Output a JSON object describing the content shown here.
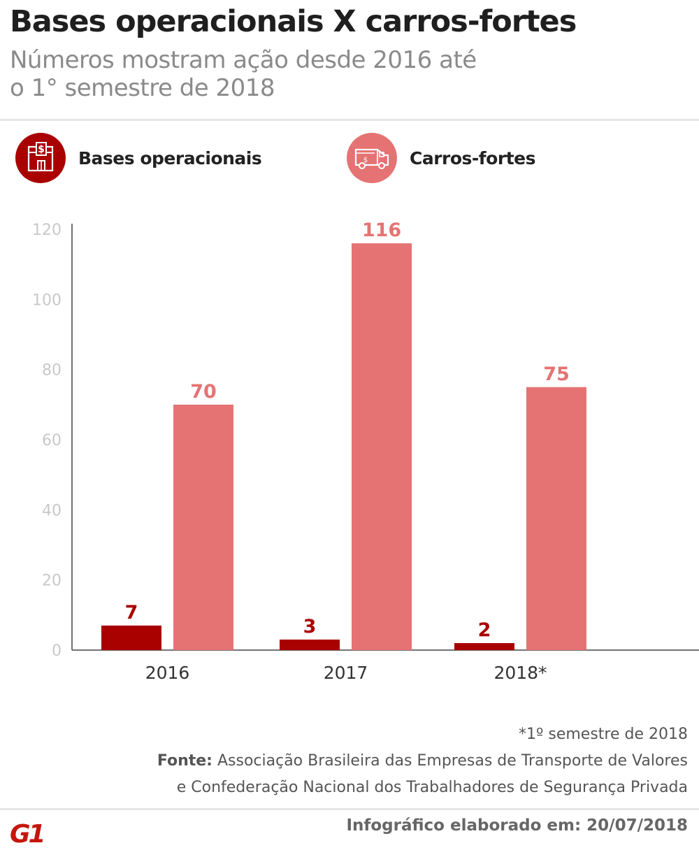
{
  "header": {
    "title": "Bases operacionais X carros-fortes",
    "subtitle_line1": "Números mostram ação desde 2016 até",
    "subtitle_line2": "o 1° semestre de 2018"
  },
  "legend": [
    {
      "label": "Bases operacionais",
      "icon": "bank-building-icon",
      "color": "#a90000"
    },
    {
      "label": "Carros-fortes",
      "icon": "armored-truck-icon",
      "color": "#e57373"
    }
  ],
  "chart_data": {
    "type": "bar",
    "categories": [
      "2016",
      "2017",
      "2018*"
    ],
    "series": [
      {
        "name": "Bases operacionais",
        "values": [
          7,
          3,
          2
        ],
        "color": "#a90000"
      },
      {
        "name": "Carros-fortes",
        "values": [
          70,
          116,
          75
        ],
        "color": "#e57373"
      }
    ],
    "ylim": [
      0,
      120
    ],
    "yticks": [
      "0",
      "20",
      "40",
      "60",
      "80",
      "100",
      "120"
    ],
    "grid": false,
    "legend_position": "top",
    "xlabel": "",
    "ylabel": ""
  },
  "notes": {
    "footnote": "*1º semestre de 2018",
    "source_label": "Fonte:",
    "source_line1": "Associação Brasileira das Empresas de Transporte de Valores",
    "source_line2": "e Confederação Nacional dos Trabalhadores de Segurança Privada"
  },
  "footer": {
    "credit": "Infográfico elaborado em: 20/07/2018",
    "logo_text": "G1",
    "logo_color": "#c4170c"
  }
}
